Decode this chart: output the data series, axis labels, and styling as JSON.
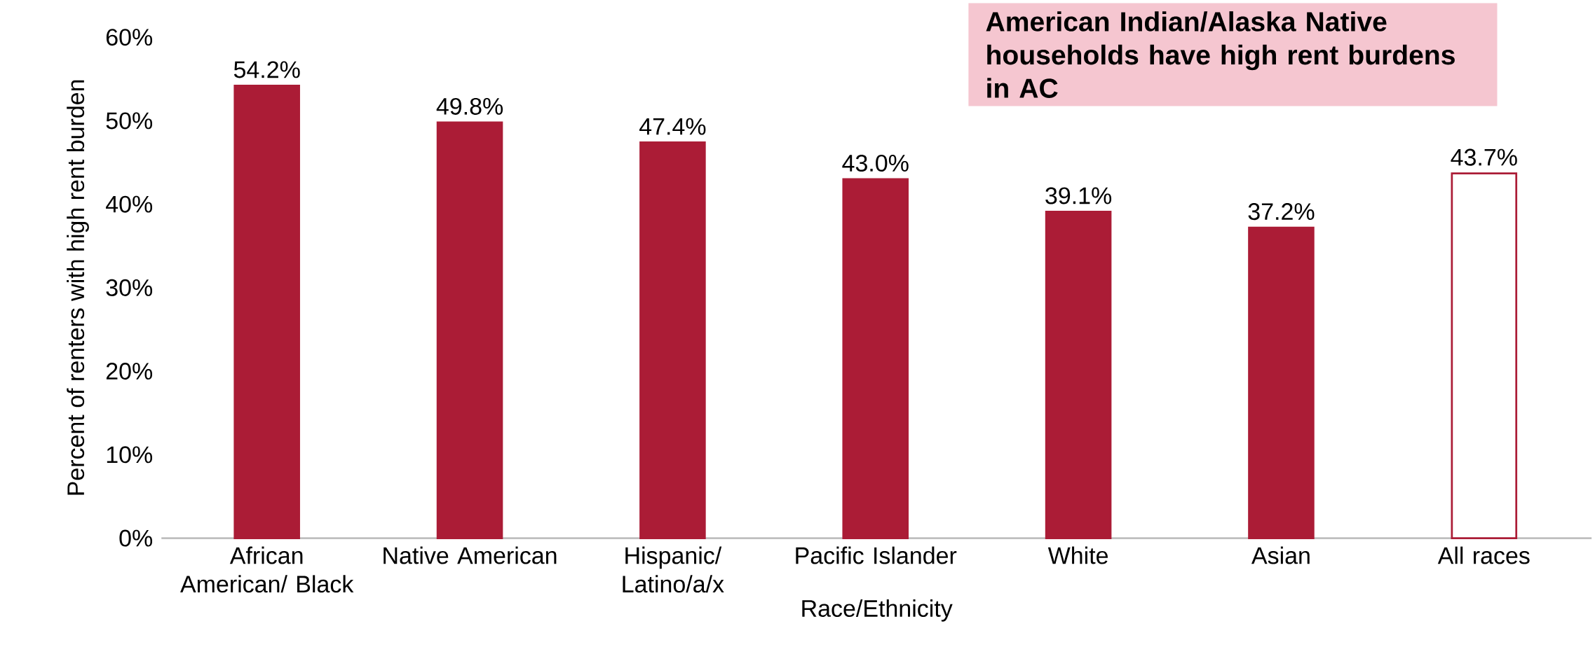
{
  "chart_data": {
    "type": "bar",
    "categories": [
      "African American/ Black",
      "Native American",
      "Hispanic/ Latino/a/x",
      "Pacific Islander",
      "White",
      "Asian",
      "All races"
    ],
    "values": [
      54.2,
      49.8,
      47.4,
      43.0,
      39.1,
      37.2,
      43.7
    ],
    "value_labels": [
      "54.2%",
      "49.8%",
      "47.4%",
      "43.0%",
      "39.1%",
      "37.2%",
      "43.7%"
    ],
    "color": "#ab1c36",
    "colors": [
      "#ab1c36",
      "#ab1c36",
      "#ab1c36",
      "#ab1c36",
      "#ab1c36",
      "#ab1c36",
      "#ffffff"
    ],
    "xlabel": "Race/Ethnicity",
    "ylabel": "Percent of renters with high rent burden",
    "ylim": [
      0,
      60
    ],
    "yticks": [
      {
        "value": 0,
        "label": "0%"
      },
      {
        "value": 10,
        "label": "10%"
      },
      {
        "value": 20,
        "label": "20%"
      },
      {
        "value": 30,
        "label": "30%"
      },
      {
        "value": 40,
        "label": "40%"
      },
      {
        "value": 50,
        "label": "50%"
      },
      {
        "value": 60,
        "label": "60%"
      }
    ],
    "grid": false,
    "annotations": [
      "American Indian/Alaska Native households have high rent burdens in AC"
    ]
  }
}
